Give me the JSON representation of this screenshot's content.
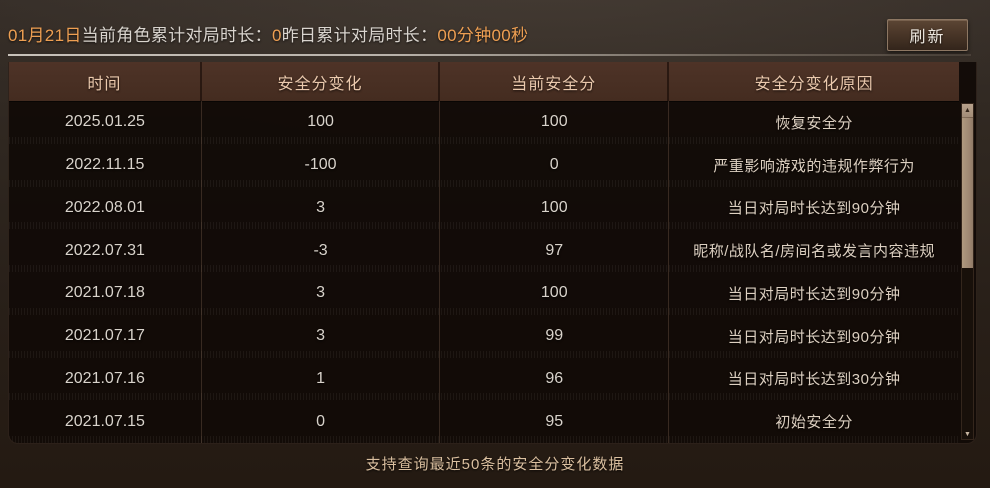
{
  "top_bar": {
    "date_label": "01月21日",
    "today_label": "当前角色累计对局时长：",
    "today_value": "0",
    "yesterday_label": "昨日累计对局时长：",
    "yesterday_value": "00分钟00秒",
    "refresh_button": "刷新"
  },
  "table": {
    "columns": [
      "时间",
      "安全分变化",
      "当前安全分",
      "安全分变化原因"
    ],
    "rows": [
      {
        "date": "2025.01.25",
        "change": "100",
        "score": "100",
        "reason": "恢复安全分"
      },
      {
        "date": "2022.11.15",
        "change": "-100",
        "score": "0",
        "reason": "严重影响游戏的违规作弊行为"
      },
      {
        "date": "2022.08.01",
        "change": "3",
        "score": "100",
        "reason": "当日对局时长达到90分钟"
      },
      {
        "date": "2022.07.31",
        "change": "-3",
        "score": "97",
        "reason": "昵称/战队名/房间名或发言内容违规"
      },
      {
        "date": "2021.07.18",
        "change": "3",
        "score": "100",
        "reason": "当日对局时长达到90分钟"
      },
      {
        "date": "2021.07.17",
        "change": "3",
        "score": "99",
        "reason": "当日对局时长达到90分钟"
      },
      {
        "date": "2021.07.16",
        "change": "1",
        "score": "96",
        "reason": "当日对局时长达到30分钟"
      },
      {
        "date": "2021.07.15",
        "change": "0",
        "score": "95",
        "reason": "初始安全分"
      }
    ]
  },
  "footer": {
    "note": "支持查询最近50条的安全分变化数据"
  },
  "scrollbar": {
    "up_arrow": "▲",
    "down_arrow": "▼"
  },
  "colors": {
    "accent_orange": "#ee9f52",
    "text_light": "#d9d4ce",
    "header_bg": "#4e3327",
    "body_bg": "#100a06",
    "scrollbar_thumb": "#9d8671"
  }
}
